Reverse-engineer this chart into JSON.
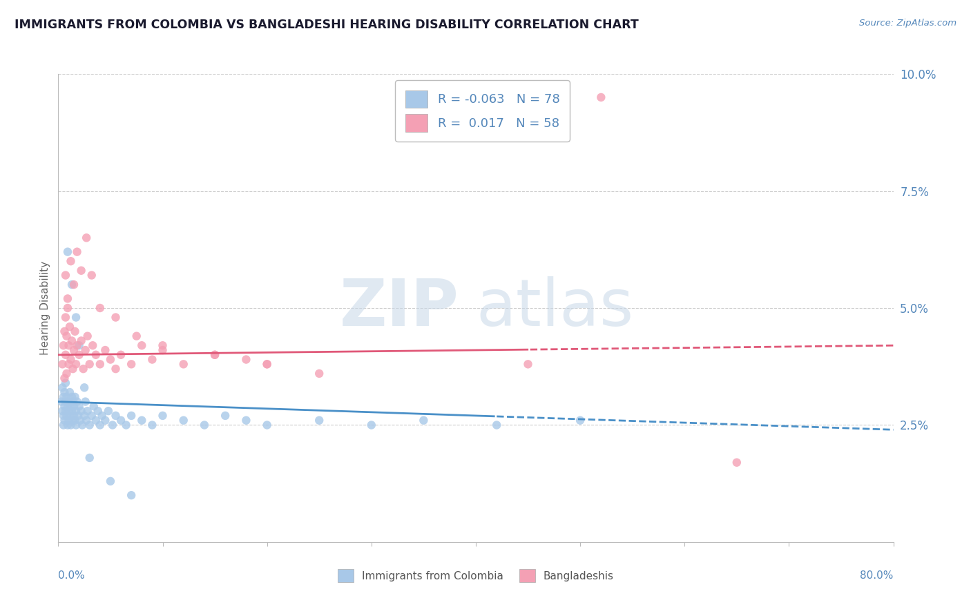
{
  "title": "IMMIGRANTS FROM COLOMBIA VS BANGLADESHI HEARING DISABILITY CORRELATION CHART",
  "source": "Source: ZipAtlas.com",
  "ylabel": "Hearing Disability",
  "xlim": [
    0.0,
    0.8
  ],
  "ylim": [
    0.0,
    0.1
  ],
  "legend_R1": "-0.063",
  "legend_N1": "78",
  "legend_R2": "0.017",
  "legend_N2": "58",
  "color_blue": "#a8c8e8",
  "color_pink": "#f4a0b4",
  "color_blue_line": "#4a90c8",
  "color_pink_line": "#e05878",
  "color_title": "#1a1a2e",
  "color_axis_labels": "#5588bb",
  "watermark_zip": "ZIP",
  "watermark_atlas": "atlas",
  "blue_scatter_x": [
    0.003,
    0.004,
    0.004,
    0.005,
    0.005,
    0.005,
    0.006,
    0.006,
    0.006,
    0.007,
    0.007,
    0.007,
    0.008,
    0.008,
    0.009,
    0.009,
    0.01,
    0.01,
    0.01,
    0.011,
    0.011,
    0.012,
    0.012,
    0.013,
    0.013,
    0.014,
    0.014,
    0.015,
    0.015,
    0.016,
    0.016,
    0.017,
    0.017,
    0.018,
    0.019,
    0.02,
    0.021,
    0.022,
    0.023,
    0.025,
    0.026,
    0.027,
    0.028,
    0.03,
    0.032,
    0.034,
    0.036,
    0.038,
    0.04,
    0.042,
    0.045,
    0.048,
    0.052,
    0.055,
    0.06,
    0.065,
    0.07,
    0.08,
    0.09,
    0.1,
    0.12,
    0.14,
    0.16,
    0.18,
    0.2,
    0.25,
    0.3,
    0.35,
    0.42,
    0.5,
    0.009,
    0.013,
    0.017,
    0.02,
    0.025,
    0.03,
    0.05,
    0.07
  ],
  "blue_scatter_y": [
    0.03,
    0.028,
    0.033,
    0.025,
    0.031,
    0.027,
    0.029,
    0.032,
    0.026,
    0.03,
    0.028,
    0.034,
    0.027,
    0.031,
    0.025,
    0.029,
    0.026,
    0.03,
    0.028,
    0.027,
    0.032,
    0.025,
    0.029,
    0.028,
    0.031,
    0.026,
    0.03,
    0.027,
    0.029,
    0.026,
    0.031,
    0.028,
    0.025,
    0.03,
    0.027,
    0.029,
    0.026,
    0.028,
    0.025,
    0.027,
    0.03,
    0.026,
    0.028,
    0.025,
    0.027,
    0.029,
    0.026,
    0.028,
    0.025,
    0.027,
    0.026,
    0.028,
    0.025,
    0.027,
    0.026,
    0.025,
    0.027,
    0.026,
    0.025,
    0.027,
    0.026,
    0.025,
    0.027,
    0.026,
    0.025,
    0.026,
    0.025,
    0.026,
    0.025,
    0.026,
    0.062,
    0.055,
    0.048,
    0.042,
    0.033,
    0.018,
    0.013,
    0.01
  ],
  "pink_scatter_x": [
    0.004,
    0.005,
    0.006,
    0.006,
    0.007,
    0.007,
    0.008,
    0.008,
    0.009,
    0.01,
    0.01,
    0.011,
    0.012,
    0.013,
    0.014,
    0.015,
    0.016,
    0.017,
    0.018,
    0.02,
    0.022,
    0.024,
    0.026,
    0.028,
    0.03,
    0.033,
    0.036,
    0.04,
    0.045,
    0.05,
    0.055,
    0.06,
    0.07,
    0.08,
    0.09,
    0.1,
    0.12,
    0.15,
    0.18,
    0.2,
    0.007,
    0.009,
    0.012,
    0.015,
    0.018,
    0.022,
    0.027,
    0.032,
    0.04,
    0.055,
    0.075,
    0.1,
    0.15,
    0.2,
    0.25,
    0.45,
    0.65,
    0.52
  ],
  "pink_scatter_y": [
    0.038,
    0.042,
    0.045,
    0.035,
    0.04,
    0.048,
    0.036,
    0.044,
    0.05,
    0.038,
    0.042,
    0.046,
    0.039,
    0.043,
    0.037,
    0.041,
    0.045,
    0.038,
    0.042,
    0.04,
    0.043,
    0.037,
    0.041,
    0.044,
    0.038,
    0.042,
    0.04,
    0.038,
    0.041,
    0.039,
    0.037,
    0.04,
    0.038,
    0.042,
    0.039,
    0.041,
    0.038,
    0.04,
    0.039,
    0.038,
    0.057,
    0.052,
    0.06,
    0.055,
    0.062,
    0.058,
    0.065,
    0.057,
    0.05,
    0.048,
    0.044,
    0.042,
    0.04,
    0.038,
    0.036,
    0.038,
    0.017,
    0.095
  ],
  "blue_trend_start_y": 0.03,
  "blue_trend_end_y": 0.024,
  "blue_trend_split_x": 0.42,
  "pink_trend_start_y": 0.04,
  "pink_trend_end_y": 0.042,
  "pink_trend_split_x": 0.45
}
